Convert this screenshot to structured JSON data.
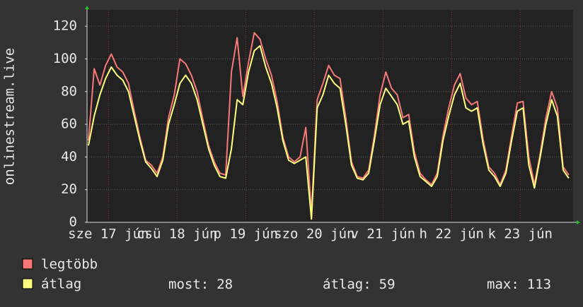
{
  "chart_data": {
    "type": "line",
    "y_label": "onlinestream.live",
    "x": [
      5,
      7,
      9,
      11,
      13,
      15,
      17,
      19,
      21,
      23,
      25,
      27,
      29,
      31,
      33,
      35,
      37,
      39,
      41,
      43,
      45,
      47,
      49,
      51,
      53,
      55,
      57,
      59,
      61,
      63,
      65,
      67,
      69,
      71,
      73,
      75,
      77,
      79,
      81,
      83,
      85,
      87,
      89,
      91,
      93,
      95,
      97,
      99,
      101,
      103,
      105,
      107,
      109,
      111,
      113,
      115,
      117,
      119,
      121,
      123,
      125,
      127,
      129,
      131,
      133,
      135,
      137,
      139,
      141,
      143,
      145,
      147,
      149,
      151,
      153,
      155,
      157,
      159,
      161,
      163,
      165,
      167,
      169,
      171,
      173
    ],
    "xlim": [
      4.5,
      174.5
    ],
    "xticks": [
      {
        "value": 12,
        "label": "sze 17 jún"
      },
      {
        "value": 36,
        "label": "csü 18 jún"
      },
      {
        "value": 60,
        "label": "p 19 jún"
      },
      {
        "value": 84,
        "label": "szo 20 jún"
      },
      {
        "value": 108,
        "label": "v 21 jún"
      },
      {
        "value": 132,
        "label": "h 22 jún"
      },
      {
        "value": 156,
        "label": "k 23 jún"
      }
    ],
    "ylim": [
      0,
      130
    ],
    "yticks": [
      0,
      20,
      40,
      60,
      80,
      100,
      120
    ],
    "grid": true,
    "series": [
      {
        "name": "legtöbb",
        "color": "#f87878",
        "values": [
          50,
          94,
          84,
          96,
          103,
          95,
          92,
          85,
          68,
          52,
          38,
          35,
          30,
          40,
          64,
          78,
          100,
          97,
          90,
          80,
          63,
          47,
          37,
          30,
          29,
          92,
          113,
          77,
          98,
          116,
          112,
          100,
          90,
          74,
          52,
          40,
          37,
          40,
          58,
          5,
          75,
          85,
          96,
          90,
          88,
          64,
          37,
          28,
          27,
          32,
          53,
          78,
          92,
          82,
          78,
          64,
          66,
          43,
          30,
          26,
          23,
          30,
          53,
          70,
          84,
          91,
          76,
          72,
          74,
          51,
          34,
          30,
          23,
          32,
          53,
          73,
          74,
          40,
          23,
          42,
          64,
          80,
          70,
          34,
          29
        ]
      },
      {
        "name": "átlag",
        "color": "#ffff80",
        "values": [
          47,
          65,
          78,
          88,
          95,
          90,
          87,
          80,
          65,
          50,
          37,
          33,
          28,
          38,
          60,
          72,
          85,
          90,
          85,
          75,
          60,
          45,
          35,
          28,
          27,
          45,
          75,
          72,
          92,
          105,
          108,
          95,
          85,
          70,
          50,
          38,
          36,
          38,
          40,
          2,
          70,
          78,
          90,
          85,
          82,
          60,
          35,
          27,
          26,
          30,
          50,
          72,
          82,
          77,
          72,
          60,
          62,
          40,
          28,
          25,
          22,
          28,
          50,
          65,
          78,
          85,
          70,
          68,
          70,
          48,
          32,
          28,
          22,
          30,
          50,
          68,
          70,
          35,
          21,
          40,
          60,
          75,
          65,
          32,
          27
        ]
      }
    ],
    "stats": [
      {
        "label": "most:",
        "value": 28
      },
      {
        "label": "átlag:",
        "value": 59
      },
      {
        "label": "max:",
        "value": 113
      }
    ]
  }
}
